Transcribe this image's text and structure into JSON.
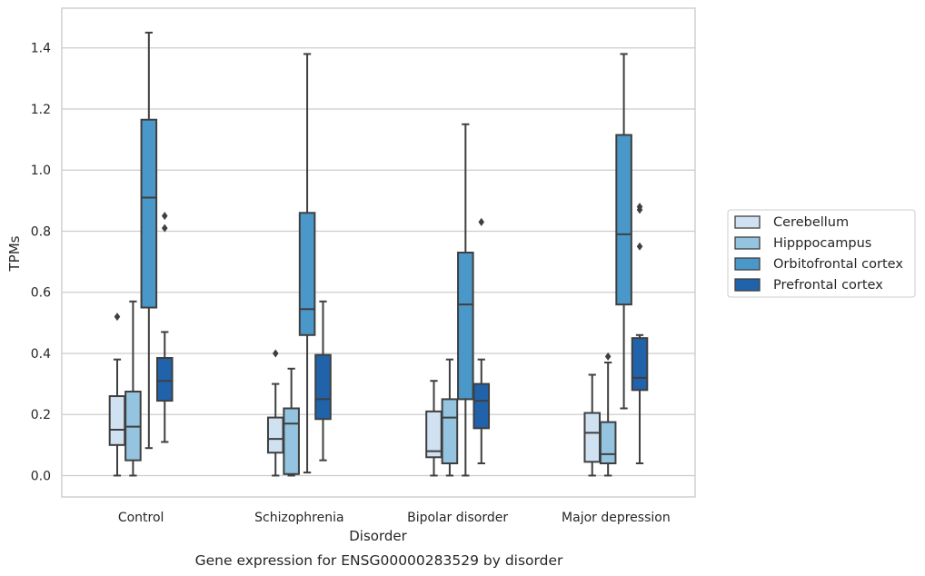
{
  "caption": "Gene expression for ENSG00000283529 by disorder",
  "chart_data": {
    "type": "box",
    "title": "",
    "xlabel": "Disorder",
    "ylabel": "TPMs",
    "ylim": [
      -0.07,
      1.53
    ],
    "yticks": [
      0.0,
      0.2,
      0.4,
      0.6,
      0.8,
      1.0,
      1.2,
      1.4
    ],
    "ytick_labels": [
      "0.0",
      "0.2",
      "0.4",
      "0.6",
      "0.8",
      "1.0",
      "1.2",
      "1.4"
    ],
    "grid": "horizontal",
    "legend_position": "right",
    "categories": [
      "Control",
      "Schizophrenia",
      "Bipolar disorder",
      "Major depression"
    ],
    "series": [
      {
        "name": "Cerebellum",
        "color": "#d0e1f2",
        "boxes": [
          {
            "whislo": 0.0,
            "q1": 0.1,
            "med": 0.15,
            "q3": 0.26,
            "whishi": 0.38,
            "fliers": [
              0.52
            ]
          },
          {
            "whislo": 0.0,
            "q1": 0.075,
            "med": 0.12,
            "q3": 0.19,
            "whishi": 0.3,
            "fliers": [
              0.4
            ]
          },
          {
            "whislo": 0.0,
            "q1": 0.06,
            "med": 0.08,
            "q3": 0.21,
            "whishi": 0.31,
            "fliers": []
          },
          {
            "whislo": 0.0,
            "q1": 0.045,
            "med": 0.14,
            "q3": 0.205,
            "whishi": 0.33,
            "fliers": []
          }
        ]
      },
      {
        "name": "Hipppocampus",
        "color": "#94c4df",
        "boxes": [
          {
            "whislo": 0.0,
            "q1": 0.05,
            "med": 0.16,
            "q3": 0.275,
            "whishi": 0.57,
            "fliers": []
          },
          {
            "whislo": 0.0,
            "q1": 0.005,
            "med": 0.17,
            "q3": 0.22,
            "whishi": 0.35,
            "fliers": []
          },
          {
            "whislo": 0.0,
            "q1": 0.04,
            "med": 0.19,
            "q3": 0.25,
            "whishi": 0.38,
            "fliers": []
          },
          {
            "whislo": 0.0,
            "q1": 0.04,
            "med": 0.07,
            "q3": 0.175,
            "whishi": 0.37,
            "fliers": [
              0.39
            ]
          }
        ]
      },
      {
        "name": "Orbitofrontal cortex",
        "color": "#4a98c9",
        "boxes": [
          {
            "whislo": 0.09,
            "q1": 0.55,
            "med": 0.91,
            "q3": 1.165,
            "whishi": 1.45,
            "fliers": []
          },
          {
            "whislo": 0.01,
            "q1": 0.46,
            "med": 0.545,
            "q3": 0.86,
            "whishi": 1.38,
            "fliers": []
          },
          {
            "whislo": 0.0,
            "q1": 0.25,
            "med": 0.56,
            "q3": 0.73,
            "whishi": 1.15,
            "fliers": []
          },
          {
            "whislo": 0.22,
            "q1": 0.56,
            "med": 0.79,
            "q3": 1.115,
            "whishi": 1.38,
            "fliers": []
          }
        ]
      },
      {
        "name": "Prefrontal cortex",
        "color": "#2163aa",
        "boxes": [
          {
            "whislo": 0.11,
            "q1": 0.245,
            "med": 0.31,
            "q3": 0.385,
            "whishi": 0.47,
            "fliers": [
              0.81,
              0.85
            ]
          },
          {
            "whislo": 0.05,
            "q1": 0.185,
            "med": 0.25,
            "q3": 0.395,
            "whishi": 0.57,
            "fliers": []
          },
          {
            "whislo": 0.04,
            "q1": 0.155,
            "med": 0.245,
            "q3": 0.3,
            "whishi": 0.38,
            "fliers": [
              0.83
            ]
          },
          {
            "whislo": 0.04,
            "q1": 0.28,
            "med": 0.32,
            "q3": 0.45,
            "whishi": 0.46,
            "fliers": [
              0.75,
              0.87,
              0.88
            ]
          }
        ]
      }
    ]
  }
}
